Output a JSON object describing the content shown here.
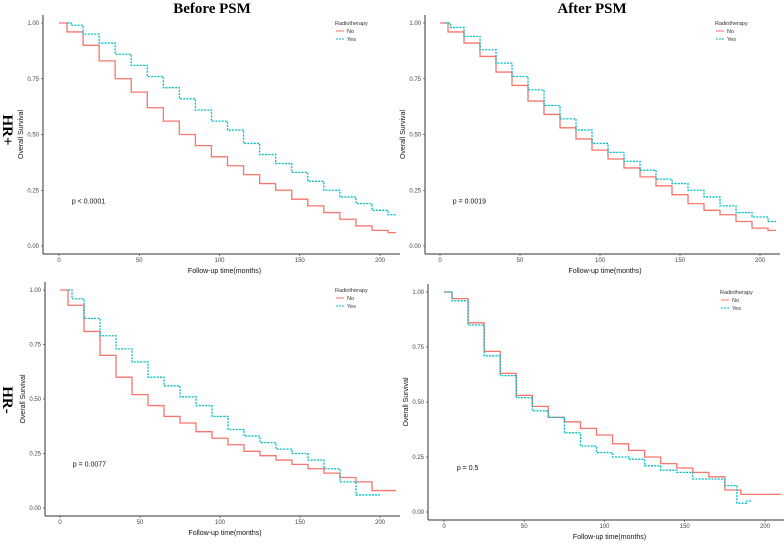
{
  "chart_data": [
    {
      "type": "line",
      "title": "Before PSM",
      "row_label": "HR+",
      "xlabel": "Follow-up time(months)",
      "ylabel": "Overall Survival",
      "xlim": [
        0,
        210
      ],
      "ylim": [
        0,
        1
      ],
      "xticks": [
        0,
        50,
        100,
        150,
        200
      ],
      "yticks": [
        "0.00",
        "0.25",
        "0.50",
        "0.75",
        "1.00"
      ],
      "annotation": "p < 0.0001",
      "legend_title": "Radiotherapy",
      "legend_position": "top-right",
      "grid": false,
      "series": [
        {
          "name": "No",
          "color": "#F8766D",
          "x": [
            0,
            10,
            20,
            30,
            40,
            50,
            60,
            70,
            80,
            90,
            100,
            110,
            120,
            130,
            140,
            150,
            160,
            170,
            180,
            190,
            200,
            210
          ],
          "y": [
            1,
            0.96,
            0.9,
            0.83,
            0.75,
            0.69,
            0.62,
            0.56,
            0.5,
            0.45,
            0.4,
            0.36,
            0.32,
            0.28,
            0.25,
            0.21,
            0.18,
            0.15,
            0.12,
            0.09,
            0.07,
            0.06
          ]
        },
        {
          "name": "Yes",
          "color": "#00BFC4",
          "x": [
            5,
            10,
            20,
            30,
            40,
            50,
            60,
            70,
            80,
            90,
            100,
            110,
            120,
            130,
            140,
            150,
            160,
            170,
            180,
            190,
            200,
            210
          ],
          "y": [
            1,
            0.99,
            0.95,
            0.91,
            0.86,
            0.81,
            0.76,
            0.71,
            0.66,
            0.61,
            0.56,
            0.52,
            0.46,
            0.41,
            0.37,
            0.33,
            0.29,
            0.25,
            0.22,
            0.19,
            0.16,
            0.14
          ]
        }
      ]
    },
    {
      "type": "line",
      "title": "After PSM",
      "row_label": "",
      "xlabel": "Follow-up time(months)",
      "ylabel": "Overall Survival",
      "xlim": [
        0,
        210
      ],
      "ylim": [
        0,
        1
      ],
      "xticks": [
        0,
        50,
        100,
        150,
        200
      ],
      "yticks": [
        "0.00",
        "0.25",
        "0.50",
        "0.75",
        "1.00"
      ],
      "annotation": "p = 0.0019",
      "legend_title": "Radiotherapy",
      "legend_position": "top-right",
      "grid": false,
      "series": [
        {
          "name": "No",
          "color": "#F8766D",
          "x": [
            0,
            10,
            20,
            30,
            40,
            50,
            60,
            70,
            80,
            90,
            100,
            110,
            120,
            130,
            140,
            150,
            160,
            170,
            180,
            190,
            200,
            210
          ],
          "y": [
            1,
            0.96,
            0.91,
            0.85,
            0.78,
            0.72,
            0.65,
            0.59,
            0.53,
            0.48,
            0.43,
            0.39,
            0.35,
            0.31,
            0.27,
            0.23,
            0.19,
            0.16,
            0.14,
            0.11,
            0.08,
            0.07
          ]
        },
        {
          "name": "Yes",
          "color": "#00BFC4",
          "x": [
            3,
            10,
            20,
            30,
            40,
            50,
            60,
            70,
            80,
            90,
            100,
            110,
            120,
            130,
            140,
            150,
            160,
            170,
            180,
            190,
            200,
            210
          ],
          "y": [
            1,
            0.98,
            0.94,
            0.88,
            0.82,
            0.76,
            0.7,
            0.63,
            0.57,
            0.52,
            0.46,
            0.42,
            0.38,
            0.34,
            0.3,
            0.28,
            0.25,
            0.22,
            0.18,
            0.15,
            0.13,
            0.11
          ]
        }
      ]
    },
    {
      "type": "line",
      "title": "",
      "row_label": "HR-",
      "xlabel": "Follow-up time(months)",
      "ylabel": "Overall Survival",
      "xlim": [
        0,
        210
      ],
      "ylim": [
        0,
        1
      ],
      "xticks": [
        0,
        50,
        100,
        150,
        200
      ],
      "yticks": [
        "0.00",
        "0.25",
        "0.50",
        "0.75",
        "1.00"
      ],
      "annotation": "p = 0.0077",
      "legend_title": "Radiotherapy",
      "legend_position": "top-right",
      "grid": false,
      "series": [
        {
          "name": "No",
          "color": "#F8766D",
          "x": [
            0,
            10,
            20,
            30,
            40,
            50,
            60,
            70,
            80,
            90,
            100,
            110,
            120,
            130,
            140,
            150,
            160,
            170,
            180,
            190,
            200,
            210
          ],
          "y": [
            1,
            0.93,
            0.81,
            0.7,
            0.6,
            0.52,
            0.47,
            0.42,
            0.39,
            0.35,
            0.32,
            0.29,
            0.26,
            0.24,
            0.22,
            0.2,
            0.18,
            0.16,
            0.14,
            0.12,
            0.08,
            0.08
          ]
        },
        {
          "name": "Yes",
          "color": "#00BFC4",
          "x": [
            5,
            10,
            20,
            30,
            40,
            50,
            60,
            70,
            80,
            90,
            100,
            110,
            120,
            130,
            140,
            150,
            160,
            170,
            180,
            190,
            200
          ],
          "y": [
            1,
            0.96,
            0.87,
            0.79,
            0.73,
            0.67,
            0.6,
            0.56,
            0.51,
            0.47,
            0.42,
            0.36,
            0.33,
            0.3,
            0.27,
            0.25,
            0.22,
            0.18,
            0.12,
            0.06,
            0.06
          ]
        }
      ]
    },
    {
      "type": "line",
      "title": "",
      "row_label": "",
      "xlabel": "Follow-up time(months)",
      "ylabel": "Overall Survival",
      "xlim": [
        0,
        210
      ],
      "ylim": [
        0,
        1
      ],
      "xticks": [
        0,
        50,
        100,
        150,
        200
      ],
      "yticks": [
        "0.00",
        "0.25",
        "0.50",
        "0.75",
        "1.00"
      ],
      "annotation": "p = 0.5",
      "legend_title": "Radiotherapy",
      "legend_position": "top-right",
      "grid": false,
      "series": [
        {
          "name": "No",
          "color": "#F8766D",
          "x": [
            0,
            10,
            20,
            30,
            40,
            50,
            60,
            70,
            80,
            90,
            100,
            110,
            120,
            130,
            140,
            150,
            160,
            170,
            180,
            190,
            210
          ],
          "y": [
            1,
            0.97,
            0.86,
            0.73,
            0.63,
            0.53,
            0.48,
            0.43,
            0.41,
            0.38,
            0.35,
            0.31,
            0.28,
            0.25,
            0.22,
            0.2,
            0.18,
            0.16,
            0.1,
            0.08,
            0.08
          ]
        },
        {
          "name": "Yes",
          "color": "#00BFC4",
          "x": [
            0,
            10,
            20,
            30,
            40,
            50,
            60,
            70,
            80,
            90,
            100,
            110,
            120,
            130,
            140,
            150,
            160,
            170,
            180,
            185,
            192
          ],
          "y": [
            1,
            0.96,
            0.85,
            0.71,
            0.62,
            0.52,
            0.46,
            0.43,
            0.36,
            0.3,
            0.27,
            0.25,
            0.24,
            0.21,
            0.19,
            0.18,
            0.15,
            0.15,
            0.12,
            0.04,
            0.05
          ]
        }
      ]
    }
  ]
}
